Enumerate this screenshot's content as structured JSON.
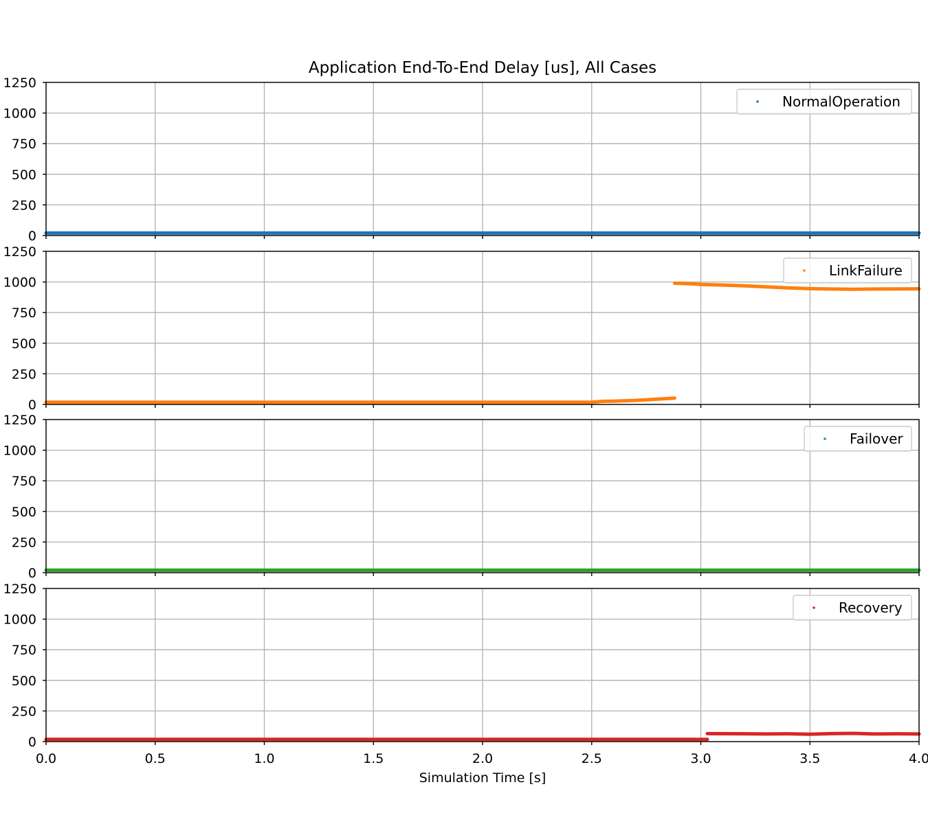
{
  "chart_data": {
    "type": "scatter",
    "title": "Application End-To-End Delay [us], All Cases",
    "xlabel": "Simulation Time [s]",
    "ylabel": "",
    "xlim": [
      0.0,
      4.0
    ],
    "ylim": [
      0,
      1250
    ],
    "xticks": [
      "0.0",
      "0.5",
      "1.0",
      "1.5",
      "2.0",
      "2.5",
      "3.0",
      "3.5",
      "4.0"
    ],
    "yticks": [
      "0",
      "250",
      "500",
      "750",
      "1000",
      "1250"
    ],
    "grid": true,
    "legend_placement": "top-right",
    "series": [
      {
        "name": "NormalOperation",
        "color": "#1f77b4",
        "segments": [
          [
            [
              0.0,
              20
            ],
            [
              4.0,
              20
            ]
          ]
        ]
      },
      {
        "name": "LinkFailure",
        "color": "#ff7f0e",
        "segments": [
          [
            [
              0.0,
              18
            ],
            [
              2.5,
              18
            ],
            [
              2.55,
              25
            ],
            [
              2.6,
              27
            ],
            [
              2.65,
              30
            ],
            [
              2.7,
              33
            ],
            [
              2.75,
              38
            ],
            [
              2.8,
              43
            ],
            [
              2.85,
              48
            ],
            [
              2.88,
              52
            ]
          ],
          [
            [
              2.88,
              990
            ],
            [
              2.95,
              985
            ],
            [
              3.0,
              980
            ],
            [
              3.1,
              975
            ],
            [
              3.2,
              968
            ],
            [
              3.3,
              960
            ],
            [
              3.4,
              952
            ],
            [
              3.5,
              945
            ],
            [
              3.6,
              942
            ],
            [
              3.7,
              940
            ],
            [
              3.8,
              942
            ],
            [
              3.9,
              943
            ],
            [
              4.0,
              944
            ]
          ]
        ]
      },
      {
        "name": "Failover",
        "color": "#2ca02c",
        "segments": [
          [
            [
              0.0,
              20
            ],
            [
              4.0,
              20
            ]
          ]
        ]
      },
      {
        "name": "Recovery",
        "color": "#d62728",
        "segments": [
          [
            [
              0.0,
              18
            ],
            [
              3.03,
              18
            ]
          ],
          [
            [
              3.03,
              65
            ],
            [
              3.2,
              64
            ],
            [
              3.3,
              62
            ],
            [
              3.4,
              64
            ],
            [
              3.5,
              60
            ],
            [
              3.6,
              65
            ],
            [
              3.7,
              67
            ],
            [
              3.8,
              62
            ],
            [
              3.9,
              64
            ],
            [
              4.0,
              62
            ]
          ]
        ]
      }
    ]
  }
}
